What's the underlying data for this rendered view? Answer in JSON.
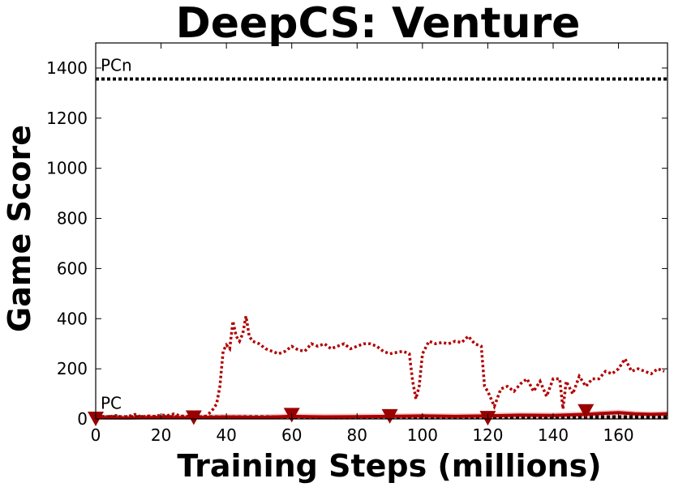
{
  "chart_data": {
    "type": "line",
    "title": "DeepCS: Venture",
    "xlabel": "Training Steps (millions)",
    "ylabel": "Game Score",
    "xlim": [
      0,
      175
    ],
    "ylim": [
      0,
      1500
    ],
    "xticks": [
      0,
      20,
      40,
      60,
      80,
      100,
      120,
      140,
      160
    ],
    "yticks": [
      0,
      200,
      400,
      600,
      800,
      1000,
      1200,
      1400
    ],
    "grid": false,
    "colors": {
      "dotted_series": "#b00000",
      "solid_series": "#aa0000",
      "band": "#f2a0a0",
      "markers": "#990000",
      "reference": "#000000"
    },
    "reference_lines": [
      {
        "label": "PCn",
        "y": 1356
      },
      {
        "label": "PC",
        "y": 8
      }
    ],
    "series": [
      {
        "style": "dotted",
        "x": [
          0,
          2,
          4,
          6,
          8,
          10,
          12,
          14,
          16,
          18,
          20,
          22,
          24,
          26,
          28,
          30,
          32,
          34,
          36,
          37,
          38,
          39,
          40,
          41,
          42,
          43,
          44,
          45,
          46,
          47,
          48,
          50,
          52,
          54,
          56,
          58,
          60,
          62,
          64,
          66,
          68,
          70,
          72,
          74,
          76,
          78,
          80,
          82,
          84,
          86,
          88,
          90,
          92,
          94,
          96,
          97,
          98,
          99,
          100,
          102,
          104,
          106,
          108,
          110,
          112,
          114,
          116,
          118,
          119,
          120,
          122,
          124,
          126,
          128,
          130,
          132,
          134,
          136,
          138,
          140,
          142,
          143,
          144,
          146,
          148,
          150,
          152,
          154,
          156,
          158,
          160,
          162,
          164,
          166,
          168,
          170,
          172,
          174
        ],
        "y": [
          12,
          10,
          8,
          14,
          6,
          10,
          18,
          8,
          12,
          10,
          16,
          14,
          20,
          12,
          10,
          18,
          8,
          12,
          40,
          60,
          130,
          270,
          295,
          280,
          390,
          330,
          310,
          340,
          410,
          330,
          310,
          300,
          280,
          270,
          260,
          270,
          290,
          275,
          270,
          300,
          290,
          300,
          280,
          290,
          300,
          280,
          290,
          300,
          300,
          290,
          270,
          260,
          265,
          270,
          260,
          150,
          80,
          130,
          260,
          310,
          300,
          305,
          300,
          310,
          305,
          330,
          300,
          290,
          130,
          110,
          50,
          120,
          130,
          110,
          140,
          160,
          110,
          150,
          90,
          160,
          160,
          40,
          150,
          100,
          170,
          130,
          160,
          160,
          190,
          180,
          200,
          240,
          190,
          200,
          190,
          180,
          200,
          190
        ]
      },
      {
        "style": "solid",
        "x": [
          0,
          10,
          20,
          30,
          40,
          50,
          60,
          70,
          80,
          90,
          100,
          110,
          120,
          130,
          140,
          150,
          155,
          160,
          165,
          170,
          175
        ],
        "y": [
          5,
          4,
          6,
          5,
          8,
          6,
          10,
          8,
          9,
          10,
          12,
          10,
          12,
          15,
          14,
          18,
          22,
          25,
          20,
          18,
          20
        ]
      },
      {
        "style": "markers",
        "x": [
          0,
          30,
          60,
          90,
          120,
          150
        ],
        "y": [
          0,
          5,
          15,
          10,
          3,
          30
        ]
      }
    ]
  }
}
